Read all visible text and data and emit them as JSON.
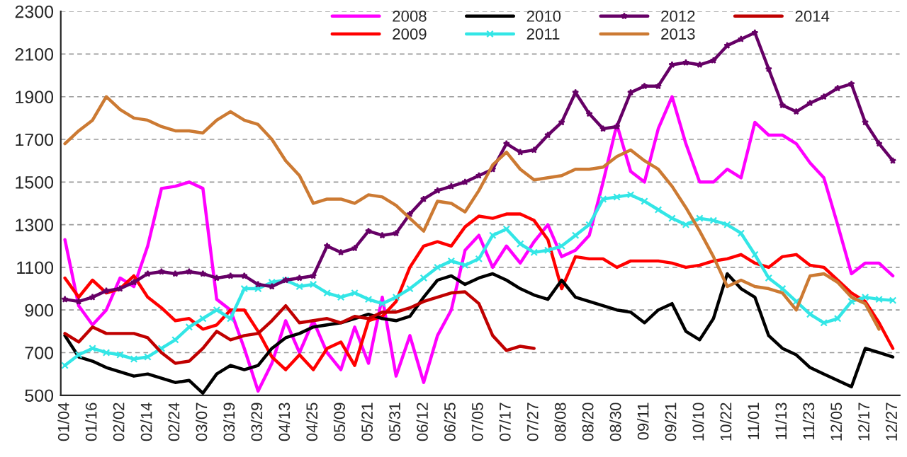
{
  "chart_data": {
    "type": "line",
    "ylim": [
      500,
      2300
    ],
    "yticks": [
      500,
      700,
      900,
      1100,
      1300,
      1500,
      1700,
      1900,
      2100,
      2300
    ],
    "grid": "y",
    "legend": "top",
    "marker": "none",
    "line_style": "solid",
    "categories": [
      "01/04",
      null,
      "01/16",
      null,
      "02/02",
      null,
      "02/14",
      null,
      "02/24",
      null,
      "03/07",
      null,
      "03/19",
      null,
      "03/29",
      null,
      "04/13",
      null,
      "04/25",
      null,
      "05/09",
      null,
      "05/21",
      null,
      "05/31",
      null,
      "06/12",
      null,
      "06/25",
      null,
      "07/05",
      null,
      "07/17",
      null,
      "07/27",
      null,
      "08/08",
      null,
      "08/20",
      null,
      "08/30",
      null,
      "09/11",
      null,
      "09/21",
      null,
      "10/10",
      null,
      "10/22",
      null,
      "11/01",
      null,
      "11/13",
      null,
      "11/23",
      null,
      "12/05",
      null,
      "12/17",
      null,
      "12/27"
    ],
    "series": [
      {
        "name": "2008",
        "color": "#ff00ff",
        "values": [
          1230,
          920,
          830,
          900,
          1050,
          1010,
          1200,
          1470,
          1480,
          1500,
          1470,
          950,
          900,
          720,
          520,
          650,
          850,
          700,
          850,
          700,
          620,
          820,
          650,
          960,
          590,
          780,
          560,
          780,
          900,
          1180,
          1250,
          1100,
          1200,
          1120,
          1220,
          1300,
          1150,
          1180,
          1250,
          1500,
          1770,
          1550,
          1500,
          1750,
          1900,
          1680,
          1500,
          1500,
          1560,
          1520,
          1780,
          1720,
          1720,
          1680,
          1590,
          1520,
          1300,
          1070,
          1120,
          1120,
          1060
        ]
      },
      {
        "name": "2009",
        "color": "#ff0000",
        "values": [
          1050,
          960,
          1040,
          980,
          1000,
          1060,
          960,
          910,
          850,
          860,
          810,
          830,
          900,
          900,
          800,
          680,
          620,
          690,
          620,
          720,
          750,
          640,
          850,
          870,
          940,
          1100,
          1200,
          1220,
          1200,
          1290,
          1340,
          1330,
          1350,
          1350,
          1320,
          1230,
          1000,
          1150,
          1140,
          1140,
          1100,
          1130,
          1130,
          1130,
          1120,
          1100,
          1110,
          1130,
          1140,
          1160,
          1120,
          1100,
          1150,
          1160,
          1110,
          1100,
          1040,
          980,
          940,
          840,
          720
        ]
      },
      {
        "name": "2010",
        "color": "#000000",
        "values": [
          780,
          680,
          660,
          630,
          610,
          590,
          600,
          580,
          560,
          570,
          510,
          600,
          640,
          620,
          640,
          720,
          770,
          790,
          820,
          830,
          840,
          860,
          880,
          860,
          850,
          870,
          960,
          1040,
          1060,
          1020,
          1050,
          1070,
          1040,
          1000,
          970,
          950,
          1040,
          960,
          940,
          920,
          900,
          890,
          840,
          900,
          930,
          800,
          760,
          860,
          1070,
          1000,
          960,
          780,
          720,
          690,
          630,
          600,
          570,
          540,
          720,
          700,
          680
        ]
      },
      {
        "name": "2011",
        "color": "#33e6e6",
        "marker": "cross",
        "values": [
          640,
          690,
          720,
          700,
          690,
          670,
          680,
          720,
          760,
          820,
          860,
          900,
          860,
          1000,
          1000,
          1030,
          1040,
          1010,
          1020,
          980,
          960,
          980,
          950,
          930,
          960,
          1000,
          1050,
          1100,
          1130,
          1110,
          1140,
          1250,
          1280,
          1210,
          1170,
          1180,
          1200,
          1250,
          1300,
          1420,
          1430,
          1440,
          1410,
          1370,
          1330,
          1300,
          1330,
          1320,
          1300,
          1260,
          1160,
          1050,
          1000,
          940,
          880,
          840,
          860,
          940,
          960,
          950,
          945
        ]
      },
      {
        "name": "2012",
        "color": "#660066",
        "marker": "star",
        "values": [
          950,
          940,
          960,
          990,
          1000,
          1030,
          1070,
          1080,
          1070,
          1080,
          1070,
          1050,
          1060,
          1060,
          1020,
          1010,
          1040,
          1050,
          1060,
          1200,
          1170,
          1190,
          1270,
          1250,
          1260,
          1350,
          1420,
          1460,
          1480,
          1500,
          1530,
          1560,
          1680,
          1640,
          1650,
          1720,
          1780,
          1920,
          1820,
          1750,
          1760,
          1920,
          1950,
          1950,
          2050,
          2060,
          2050,
          2070,
          2140,
          2170,
          2200,
          2030,
          1860,
          1830,
          1870,
          1900,
          1940,
          1960,
          1780,
          1680,
          1600
        ]
      },
      {
        "name": "2013",
        "color": "#cc7a33",
        "values": [
          1680,
          1740,
          1790,
          1900,
          1840,
          1800,
          1790,
          1760,
          1740,
          1740,
          1730,
          1790,
          1830,
          1790,
          1770,
          1700,
          1600,
          1530,
          1400,
          1420,
          1420,
          1400,
          1440,
          1430,
          1390,
          1330,
          1270,
          1410,
          1400,
          1360,
          1460,
          1580,
          1640,
          1560,
          1510,
          1520,
          1530,
          1560,
          1560,
          1570,
          1620,
          1650,
          1600,
          1560,
          1480,
          1380,
          1270,
          1150,
          1010,
          1040,
          1010,
          1000,
          980,
          900,
          1060,
          1070,
          1030,
          960,
          930,
          810,
          null
        ]
      },
      {
        "name": "2014",
        "color": "#c00000",
        "values": [
          790,
          750,
          820,
          790,
          790,
          790,
          770,
          700,
          650,
          660,
          720,
          800,
          760,
          780,
          790,
          850,
          920,
          840,
          850,
          860,
          840,
          870,
          860,
          890,
          890,
          910,
          940,
          960,
          980,
          985,
          930,
          780,
          710,
          730,
          720,
          null,
          null,
          null,
          null,
          null,
          null,
          null,
          null,
          null,
          null,
          null,
          null,
          null,
          null,
          null,
          null,
          null,
          null,
          null,
          null,
          null,
          null,
          null,
          null,
          null,
          null
        ]
      }
    ]
  }
}
